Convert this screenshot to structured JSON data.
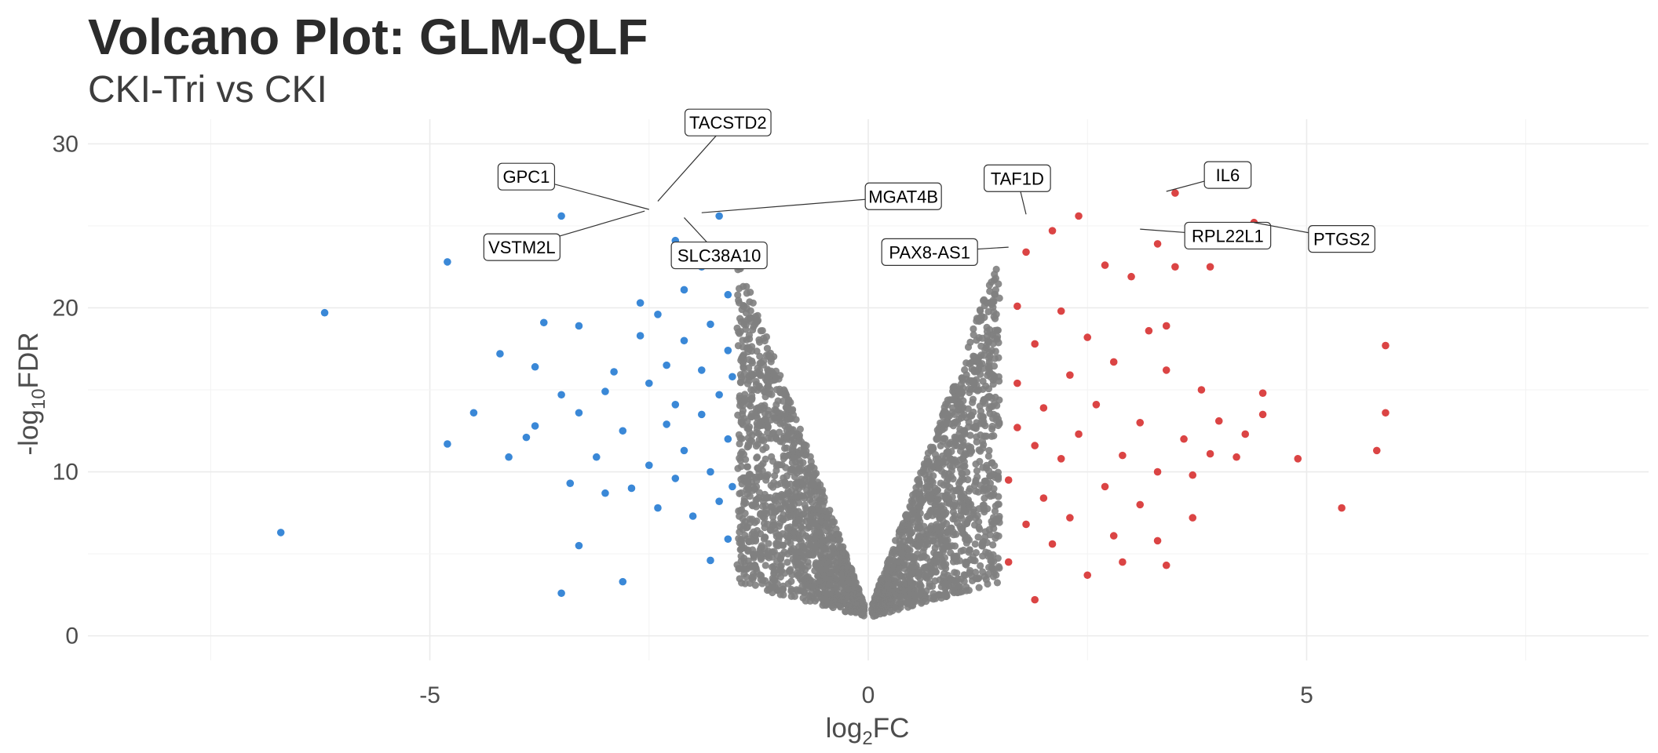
{
  "chart_data": {
    "type": "scatter",
    "title": "Volcano Plot: GLM-QLF",
    "subtitle": "CKI-Tri vs CKI",
    "xlabel_main": "log",
    "xlabel_sub": "2",
    "xlabel_tail": "FC",
    "ylabel_main": "-log",
    "ylabel_sub": "10",
    "ylabel_tail": "FDR",
    "xlim": [
      -8.9,
      8.9
    ],
    "ylim": [
      -1.5,
      31.5
    ],
    "x_ticks": [
      -5,
      0,
      5
    ],
    "y_ticks": [
      0,
      10,
      20,
      30
    ],
    "grid": true,
    "legend": "none",
    "colors": {
      "down": "#1f78d1",
      "ns": "#808080",
      "up": "#d62a2a"
    },
    "fc_threshold": 1.5,
    "down_points": [
      [
        -6.7,
        6.3
      ],
      [
        -6.2,
        19.7
      ],
      [
        -4.8,
        22.8
      ],
      [
        -4.8,
        11.7
      ],
      [
        -4.5,
        13.6
      ],
      [
        -4.2,
        17.2
      ],
      [
        -4.1,
        10.9
      ],
      [
        -3.9,
        12.1
      ],
      [
        -3.8,
        12.8
      ],
      [
        -3.8,
        16.4
      ],
      [
        -3.7,
        19.1
      ],
      [
        -3.5,
        14.7
      ],
      [
        -3.5,
        2.6
      ],
      [
        -3.5,
        25.6
      ],
      [
        -3.4,
        9.3
      ],
      [
        -3.3,
        5.5
      ],
      [
        -3.3,
        13.6
      ],
      [
        -3.3,
        18.9
      ],
      [
        -3.1,
        10.9
      ],
      [
        -3.0,
        8.7
      ],
      [
        -3.0,
        14.9
      ],
      [
        -2.9,
        16.1
      ],
      [
        -2.8,
        12.5
      ],
      [
        -2.7,
        9.0
      ],
      [
        -2.8,
        3.3
      ],
      [
        -2.6,
        18.3
      ],
      [
        -2.6,
        20.3
      ],
      [
        -2.5,
        15.4
      ],
      [
        -2.5,
        10.4
      ],
      [
        -2.4,
        7.8
      ],
      [
        -2.4,
        19.6
      ],
      [
        -2.3,
        12.9
      ],
      [
        -2.3,
        16.5
      ],
      [
        -2.2,
        9.6
      ],
      [
        -2.2,
        14.1
      ],
      [
        -2.2,
        24.1
      ],
      [
        -2.1,
        18.0
      ],
      [
        -2.1,
        21.1
      ],
      [
        -2.1,
        11.3
      ],
      [
        -2.0,
        7.3
      ],
      [
        -1.9,
        16.2
      ],
      [
        -1.9,
        13.5
      ],
      [
        -1.9,
        22.5
      ],
      [
        -1.8,
        4.6
      ],
      [
        -1.8,
        10.0
      ],
      [
        -1.8,
        19.0
      ],
      [
        -1.7,
        25.6
      ],
      [
        -1.7,
        14.7
      ],
      [
        -1.7,
        8.2
      ],
      [
        -1.6,
        17.4
      ],
      [
        -1.6,
        12.0
      ],
      [
        -1.6,
        20.8
      ],
      [
        -1.6,
        5.9
      ],
      [
        -1.55,
        15.8
      ],
      [
        -1.55,
        9.1
      ]
    ],
    "up_points": [
      [
        1.6,
        4.5
      ],
      [
        1.6,
        9.5
      ],
      [
        1.7,
        15.4
      ],
      [
        1.7,
        20.1
      ],
      [
        1.7,
        12.7
      ],
      [
        1.8,
        6.8
      ],
      [
        1.8,
        23.4
      ],
      [
        1.9,
        2.2
      ],
      [
        1.9,
        11.6
      ],
      [
        1.9,
        17.8
      ],
      [
        2.0,
        8.4
      ],
      [
        2.0,
        13.9
      ],
      [
        2.1,
        24.7
      ],
      [
        2.1,
        5.6
      ],
      [
        2.2,
        19.8
      ],
      [
        2.2,
        10.8
      ],
      [
        2.3,
        15.9
      ],
      [
        2.3,
        7.2
      ],
      [
        2.4,
        25.6
      ],
      [
        2.4,
        12.3
      ],
      [
        2.5,
        18.2
      ],
      [
        2.5,
        3.7
      ],
      [
        2.6,
        14.1
      ],
      [
        2.7,
        22.6
      ],
      [
        2.7,
        9.1
      ],
      [
        2.8,
        16.7
      ],
      [
        2.8,
        6.1
      ],
      [
        2.9,
        11.0
      ],
      [
        2.9,
        4.5
      ],
      [
        3.0,
        21.9
      ],
      [
        3.1,
        13.0
      ],
      [
        3.1,
        8.0
      ],
      [
        3.2,
        18.6
      ],
      [
        3.3,
        23.9
      ],
      [
        3.3,
        10.0
      ],
      [
        3.3,
        5.8
      ],
      [
        3.4,
        16.2
      ],
      [
        3.4,
        18.9
      ],
      [
        3.4,
        4.3
      ],
      [
        3.5,
        22.5
      ],
      [
        3.5,
        27.0
      ],
      [
        3.6,
        12.0
      ],
      [
        3.7,
        7.2
      ],
      [
        3.7,
        9.8
      ],
      [
        3.8,
        15.0
      ],
      [
        3.9,
        11.1
      ],
      [
        3.9,
        22.5
      ],
      [
        4.0,
        13.1
      ],
      [
        4.2,
        10.9
      ],
      [
        4.3,
        12.3
      ],
      [
        4.4,
        25.2
      ],
      [
        4.5,
        14.8
      ],
      [
        4.5,
        13.5
      ],
      [
        4.9,
        10.8
      ],
      [
        5.4,
        7.8
      ],
      [
        5.8,
        11.3
      ],
      [
        5.9,
        17.7
      ],
      [
        5.9,
        13.6
      ]
    ],
    "labels": [
      {
        "gene": "TACSTD2",
        "x": -2.4,
        "y": 26.5
      },
      {
        "gene": "GPC1",
        "x": -2.5,
        "y": 26.0
      },
      {
        "gene": "MGAT4B",
        "x": -1.9,
        "y": 25.8
      },
      {
        "gene": "VSTM2L",
        "x": -2.55,
        "y": 25.9
      },
      {
        "gene": "SLC38A10",
        "x": -2.1,
        "y": 25.5
      },
      {
        "gene": "TAF1D",
        "x": 1.8,
        "y": 25.7
      },
      {
        "gene": "IL6",
        "x": 3.4,
        "y": 27.1
      },
      {
        "gene": "RPL22L1",
        "x": 3.1,
        "y": 24.8
      },
      {
        "gene": "PTGS2",
        "x": 4.4,
        "y": 25.2
      },
      {
        "gene": "PAX8-AS1",
        "x": 1.6,
        "y": 23.7
      }
    ]
  }
}
